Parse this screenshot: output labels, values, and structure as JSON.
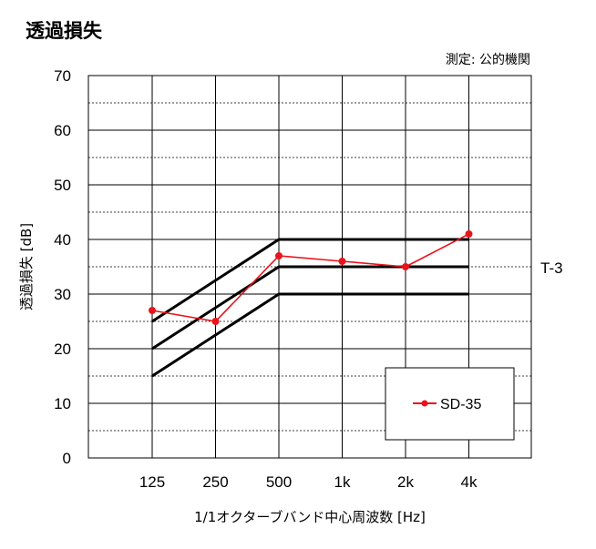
{
  "title": "透過損失",
  "source_note": "測定: 公的機関",
  "colors": {
    "series": "#e8141c",
    "curves": "#000000",
    "grid": "#000000"
  },
  "chart_data": {
    "type": "line",
    "title": "透過損失",
    "xlabel": "1/1オクターブバンド中心周波数 [Hz]",
    "ylabel": "透過損失 [dB]",
    "categories": [
      "125",
      "250",
      "500",
      "1k",
      "2k",
      "4k"
    ],
    "ylim": [
      0,
      70
    ],
    "yticks": [
      0,
      10,
      20,
      30,
      40,
      50,
      60,
      70
    ],
    "grid": true,
    "series": [
      {
        "name": "SD-35",
        "values": [
          27,
          25,
          37,
          36,
          35,
          41
        ]
      }
    ],
    "reference_curves": {
      "label": "T-3",
      "curves": [
        [
          25,
          null,
          40,
          40,
          40,
          40
        ],
        [
          20,
          null,
          35,
          35,
          35,
          35
        ],
        [
          15,
          null,
          30,
          30,
          30,
          30
        ]
      ]
    },
    "legend": {
      "position": "bottom-right"
    }
  }
}
